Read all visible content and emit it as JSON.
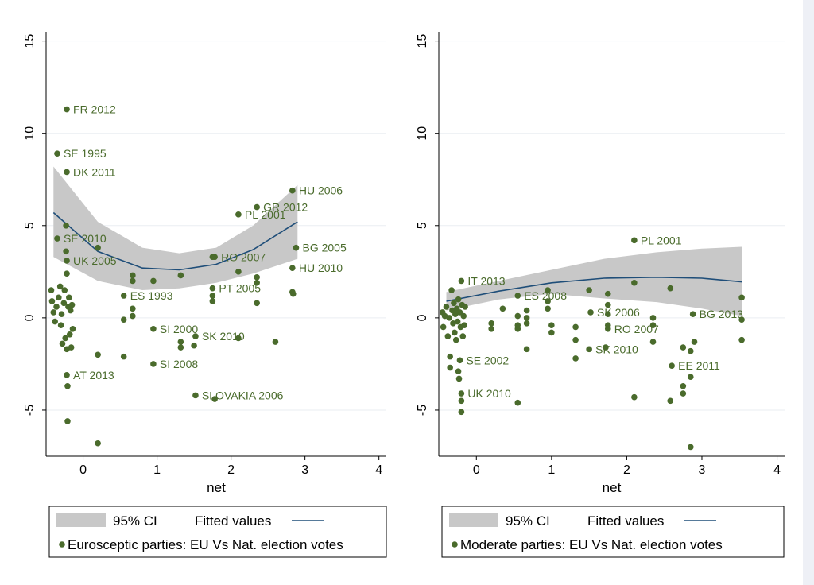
{
  "colors": {
    "marker": "#4a6b2c",
    "label": "#4a6b2c",
    "fit_line": "#1f4e79",
    "ci_band": "#c8c8c8",
    "grid": "#eaeef2",
    "axis": "#000000"
  },
  "chart_data": [
    {
      "type": "scatter",
      "xlabel": "net",
      "ylabel": "",
      "xlim": [
        -0.5,
        4.1
      ],
      "ylim": [
        -7.5,
        15.5
      ],
      "xticks": [
        0,
        1,
        2,
        3,
        4
      ],
      "yticks": [
        -5,
        0,
        5,
        10,
        15
      ],
      "grid": true,
      "legend": {
        "position": "bottom",
        "ci_label": "95% CI",
        "fit_label": "Fitted values",
        "points_label": "Eurosceptic parties: EU Vs Nat. election votes"
      },
      "fit": {
        "x": [
          -0.4,
          0.2,
          0.8,
          1.3,
          1.8,
          2.3,
          2.9
        ],
        "y": [
          5.7,
          3.6,
          2.7,
          2.6,
          2.9,
          3.7,
          5.2
        ],
        "ci_low": [
          3.3,
          2.0,
          1.5,
          1.6,
          1.9,
          2.4,
          3.2
        ],
        "ci_high": [
          8.2,
          5.2,
          3.8,
          3.5,
          3.8,
          5.0,
          7.2
        ]
      },
      "points": [
        {
          "x": -0.22,
          "y": 11.3,
          "label": "FR 2012"
        },
        {
          "x": -0.35,
          "y": 8.9,
          "label": "SE 1995"
        },
        {
          "x": -0.22,
          "y": 7.9,
          "label": "DK 2011"
        },
        {
          "x": -0.35,
          "y": 4.3,
          "label": "SE 2010"
        },
        {
          "x": -0.22,
          "y": 3.1,
          "label": "UK 2005"
        },
        {
          "x": -0.22,
          "y": -3.1,
          "label": "AT 2013"
        },
        {
          "x": 0.55,
          "y": 1.2,
          "label": "ES 1993"
        },
        {
          "x": 0.95,
          "y": -0.6,
          "label": "SI 2000"
        },
        {
          "x": 0.95,
          "y": -2.5,
          "label": "SI 2008"
        },
        {
          "x": 1.52,
          "y": -4.2,
          "label": "SLOVAKIA 2006"
        },
        {
          "x": 1.52,
          "y": -1.0,
          "label": "SK 2010"
        },
        {
          "x": 1.75,
          "y": 1.6,
          "label": "PT 2005"
        },
        {
          "x": 1.78,
          "y": 3.3,
          "label": "RO 2007"
        },
        {
          "x": 2.1,
          "y": 5.6,
          "label": "PL 2001"
        },
        {
          "x": 2.35,
          "y": 6.0,
          "label": "GR 2012"
        },
        {
          "x": 2.83,
          "y": 6.9,
          "label": "HU 2006"
        },
        {
          "x": 2.88,
          "y": 3.8,
          "label": "BG 2005"
        },
        {
          "x": 2.83,
          "y": 2.7,
          "label": "HU 2010"
        },
        {
          "x": -0.43,
          "y": 1.5,
          "label": ""
        },
        {
          "x": -0.42,
          "y": 0.9,
          "label": ""
        },
        {
          "x": -0.4,
          "y": 0.3,
          "label": ""
        },
        {
          "x": -0.38,
          "y": -0.2,
          "label": ""
        },
        {
          "x": -0.36,
          "y": 0.6,
          "label": ""
        },
        {
          "x": -0.33,
          "y": 1.1,
          "label": ""
        },
        {
          "x": -0.31,
          "y": 1.7,
          "label": ""
        },
        {
          "x": -0.3,
          "y": -0.4,
          "label": ""
        },
        {
          "x": -0.29,
          "y": 0.2,
          "label": ""
        },
        {
          "x": -0.28,
          "y": -1.4,
          "label": ""
        },
        {
          "x": -0.26,
          "y": 0.8,
          "label": ""
        },
        {
          "x": -0.25,
          "y": 1.5,
          "label": ""
        },
        {
          "x": -0.24,
          "y": -1.1,
          "label": ""
        },
        {
          "x": -0.23,
          "y": 5.0,
          "label": ""
        },
        {
          "x": -0.23,
          "y": 3.6,
          "label": ""
        },
        {
          "x": -0.22,
          "y": 2.4,
          "label": ""
        },
        {
          "x": -0.22,
          "y": -1.7,
          "label": ""
        },
        {
          "x": -0.21,
          "y": -3.7,
          "label": ""
        },
        {
          "x": -0.21,
          "y": -5.6,
          "label": ""
        },
        {
          "x": -0.2,
          "y": 0.6,
          "label": ""
        },
        {
          "x": -0.19,
          "y": 1.1,
          "label": ""
        },
        {
          "x": -0.18,
          "y": -0.9,
          "label": ""
        },
        {
          "x": -0.17,
          "y": 0.4,
          "label": ""
        },
        {
          "x": -0.16,
          "y": -1.6,
          "label": ""
        },
        {
          "x": -0.15,
          "y": 0.7,
          "label": ""
        },
        {
          "x": -0.14,
          "y": -0.6,
          "label": ""
        },
        {
          "x": 0.2,
          "y": 3.8,
          "label": ""
        },
        {
          "x": 0.2,
          "y": -2.0,
          "label": ""
        },
        {
          "x": 0.2,
          "y": -6.8,
          "label": ""
        },
        {
          "x": 0.55,
          "y": -0.1,
          "label": ""
        },
        {
          "x": 0.55,
          "y": -2.1,
          "label": ""
        },
        {
          "x": 0.67,
          "y": 2.3,
          "label": ""
        },
        {
          "x": 0.67,
          "y": 2.0,
          "label": ""
        },
        {
          "x": 0.67,
          "y": 0.5,
          "label": ""
        },
        {
          "x": 0.67,
          "y": 0.1,
          "label": ""
        },
        {
          "x": 0.95,
          "y": 2.0,
          "label": ""
        },
        {
          "x": 1.32,
          "y": 2.3,
          "label": ""
        },
        {
          "x": 1.32,
          "y": -1.3,
          "label": ""
        },
        {
          "x": 1.32,
          "y": -1.6,
          "label": ""
        },
        {
          "x": 1.5,
          "y": -1.5,
          "label": ""
        },
        {
          "x": 1.75,
          "y": 1.2,
          "label": ""
        },
        {
          "x": 1.75,
          "y": 0.9,
          "label": ""
        },
        {
          "x": 1.75,
          "y": 3.3,
          "label": ""
        },
        {
          "x": 1.78,
          "y": -4.4,
          "label": ""
        },
        {
          "x": 2.1,
          "y": 2.5,
          "label": ""
        },
        {
          "x": 2.1,
          "y": -1.1,
          "label": ""
        },
        {
          "x": 2.35,
          "y": 2.2,
          "label": ""
        },
        {
          "x": 2.35,
          "y": 1.9,
          "label": ""
        },
        {
          "x": 2.35,
          "y": 0.8,
          "label": ""
        },
        {
          "x": 2.6,
          "y": -1.3,
          "label": ""
        },
        {
          "x": 2.83,
          "y": 1.4,
          "label": ""
        },
        {
          "x": 2.84,
          "y": 1.3,
          "label": ""
        }
      ]
    },
    {
      "type": "scatter",
      "xlabel": "net",
      "ylabel": "",
      "xlim": [
        -0.5,
        4.1
      ],
      "ylim": [
        -7.5,
        15.5
      ],
      "xticks": [
        0,
        1,
        2,
        3,
        4
      ],
      "yticks": [
        -5,
        0,
        5,
        10,
        15
      ],
      "grid": true,
      "legend": {
        "position": "bottom",
        "ci_label": "95% CI",
        "fit_label": "Fitted values",
        "points_label": "Moderate parties: EU Vs Nat. election votes"
      },
      "fit": {
        "x": [
          -0.4,
          0.3,
          1.0,
          1.7,
          2.4,
          3.0,
          3.53
        ],
        "y": [
          0.9,
          1.45,
          1.9,
          2.15,
          2.2,
          2.15,
          1.95
        ],
        "ci_low": [
          0.4,
          1.0,
          1.3,
          1.05,
          0.85,
          0.5,
          0.1
        ],
        "ci_high": [
          1.4,
          2.0,
          2.6,
          3.2,
          3.55,
          3.75,
          3.85
        ]
      },
      "points": [
        {
          "x": 2.1,
          "y": 4.2,
          "label": "PL 2001"
        },
        {
          "x": -0.2,
          "y": 2.0,
          "label": "IT 2013"
        },
        {
          "x": 0.55,
          "y": 1.2,
          "label": "ES 2008"
        },
        {
          "x": 1.52,
          "y": 0.3,
          "label": "SK 2006"
        },
        {
          "x": 1.75,
          "y": -0.6,
          "label": "RO 2007"
        },
        {
          "x": 1.5,
          "y": -1.7,
          "label": "SK 2010"
        },
        {
          "x": 2.88,
          "y": 0.2,
          "label": "BG 2013"
        },
        {
          "x": -0.22,
          "y": -2.3,
          "label": "SE 2002"
        },
        {
          "x": -0.2,
          "y": -4.1,
          "label": "UK 2010"
        },
        {
          "x": 2.6,
          "y": -2.6,
          "label": "EE 2011"
        },
        {
          "x": -0.45,
          "y": 0.3,
          "label": ""
        },
        {
          "x": -0.44,
          "y": -0.5,
          "label": ""
        },
        {
          "x": -0.42,
          "y": 0.1,
          "label": ""
        },
        {
          "x": -0.4,
          "y": 0.6,
          "label": ""
        },
        {
          "x": -0.38,
          "y": -1.0,
          "label": ""
        },
        {
          "x": -0.36,
          "y": 0.0,
          "label": ""
        },
        {
          "x": -0.35,
          "y": -2.1,
          "label": ""
        },
        {
          "x": -0.35,
          "y": -2.7,
          "label": ""
        },
        {
          "x": -0.33,
          "y": 1.5,
          "label": ""
        },
        {
          "x": -0.32,
          "y": 0.4,
          "label": ""
        },
        {
          "x": -0.31,
          "y": -0.3,
          "label": ""
        },
        {
          "x": -0.3,
          "y": 0.8,
          "label": ""
        },
        {
          "x": -0.29,
          "y": -0.8,
          "label": ""
        },
        {
          "x": -0.28,
          "y": 0.2,
          "label": ""
        },
        {
          "x": -0.27,
          "y": -1.2,
          "label": ""
        },
        {
          "x": -0.26,
          "y": 0.5,
          "label": ""
        },
        {
          "x": -0.25,
          "y": -0.2,
          "label": ""
        },
        {
          "x": -0.24,
          "y": 1.0,
          "label": ""
        },
        {
          "x": -0.24,
          "y": -2.9,
          "label": ""
        },
        {
          "x": -0.23,
          "y": -3.3,
          "label": ""
        },
        {
          "x": -0.22,
          "y": 0.3,
          "label": ""
        },
        {
          "x": -0.21,
          "y": -0.5,
          "label": ""
        },
        {
          "x": -0.2,
          "y": -4.5,
          "label": ""
        },
        {
          "x": -0.2,
          "y": -5.1,
          "label": ""
        },
        {
          "x": -0.19,
          "y": 0.7,
          "label": ""
        },
        {
          "x": -0.18,
          "y": -1.0,
          "label": ""
        },
        {
          "x": -0.17,
          "y": 0.1,
          "label": ""
        },
        {
          "x": -0.16,
          "y": -0.4,
          "label": ""
        },
        {
          "x": -0.15,
          "y": 0.6,
          "label": ""
        },
        {
          "x": 0.2,
          "y": -0.3,
          "label": ""
        },
        {
          "x": 0.2,
          "y": -0.6,
          "label": ""
        },
        {
          "x": 0.35,
          "y": 0.5,
          "label": ""
        },
        {
          "x": 0.55,
          "y": 0.1,
          "label": ""
        },
        {
          "x": 0.55,
          "y": -0.4,
          "label": ""
        },
        {
          "x": 0.55,
          "y": -0.6,
          "label": ""
        },
        {
          "x": 0.55,
          "y": -4.6,
          "label": ""
        },
        {
          "x": 0.67,
          "y": 0.4,
          "label": ""
        },
        {
          "x": 0.67,
          "y": 0.0,
          "label": ""
        },
        {
          "x": 0.67,
          "y": -0.3,
          "label": ""
        },
        {
          "x": 0.67,
          "y": -1.7,
          "label": ""
        },
        {
          "x": 0.95,
          "y": 1.5,
          "label": ""
        },
        {
          "x": 0.95,
          "y": 0.9,
          "label": ""
        },
        {
          "x": 0.95,
          "y": 0.5,
          "label": ""
        },
        {
          "x": 1.0,
          "y": -0.4,
          "label": ""
        },
        {
          "x": 1.0,
          "y": -0.8,
          "label": ""
        },
        {
          "x": 1.32,
          "y": -0.5,
          "label": ""
        },
        {
          "x": 1.32,
          "y": -1.2,
          "label": ""
        },
        {
          "x": 1.32,
          "y": -2.2,
          "label": ""
        },
        {
          "x": 1.5,
          "y": 1.5,
          "label": ""
        },
        {
          "x": 1.75,
          "y": 1.3,
          "label": ""
        },
        {
          "x": 1.75,
          "y": 0.7,
          "label": ""
        },
        {
          "x": 1.75,
          "y": 0.2,
          "label": ""
        },
        {
          "x": 1.75,
          "y": -0.4,
          "label": ""
        },
        {
          "x": 1.72,
          "y": -1.6,
          "label": ""
        },
        {
          "x": 2.1,
          "y": 1.9,
          "label": ""
        },
        {
          "x": 2.1,
          "y": -4.3,
          "label": ""
        },
        {
          "x": 2.35,
          "y": 0.0,
          "label": ""
        },
        {
          "x": 2.35,
          "y": -0.4,
          "label": ""
        },
        {
          "x": 2.35,
          "y": -1.3,
          "label": ""
        },
        {
          "x": 2.58,
          "y": 1.6,
          "label": ""
        },
        {
          "x": 2.58,
          "y": -4.5,
          "label": ""
        },
        {
          "x": 2.75,
          "y": -1.6,
          "label": ""
        },
        {
          "x": 2.75,
          "y": -3.7,
          "label": ""
        },
        {
          "x": 2.75,
          "y": -4.1,
          "label": ""
        },
        {
          "x": 2.85,
          "y": -1.8,
          "label": ""
        },
        {
          "x": 2.85,
          "y": -3.2,
          "label": ""
        },
        {
          "x": 2.85,
          "y": -7.0,
          "label": ""
        },
        {
          "x": 2.9,
          "y": -1.3,
          "label": ""
        },
        {
          "x": 3.53,
          "y": 1.1,
          "label": ""
        },
        {
          "x": 3.53,
          "y": -0.1,
          "label": ""
        },
        {
          "x": 3.53,
          "y": -1.2,
          "label": ""
        }
      ]
    }
  ]
}
